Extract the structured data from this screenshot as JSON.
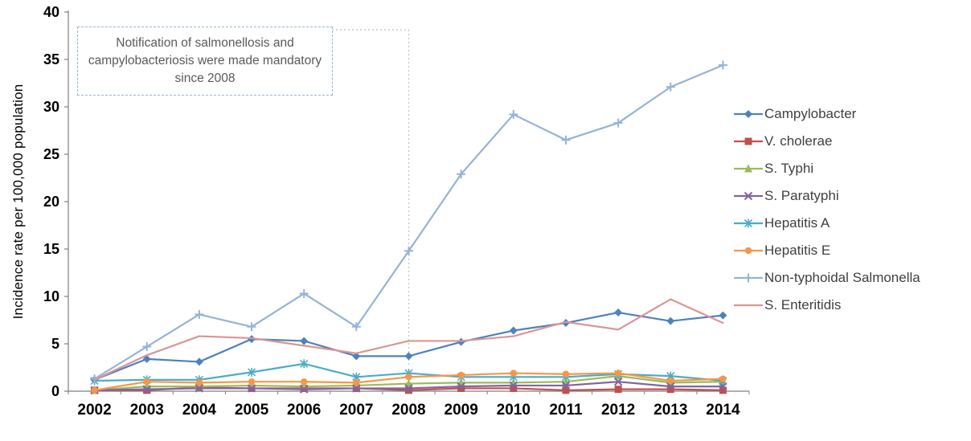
{
  "chart_data": {
    "type": "line",
    "x": [
      "2002",
      "2003",
      "2004",
      "2005",
      "2006",
      "2007",
      "2008",
      "2009",
      "2010",
      "2011",
      "2012",
      "2013",
      "2014"
    ],
    "ylabel": "Incidence rate per 100,000 population",
    "ylim": [
      0,
      40
    ],
    "ytick_step": 5,
    "yticks": [
      0,
      5,
      10,
      15,
      20,
      25,
      30,
      35,
      40
    ],
    "grid": false,
    "legend_position": "right",
    "annotation": {
      "text": "Notification of salmonellosis and campylobacteriosis were made mandatory since 2008",
      "at_x": "2008"
    },
    "series": [
      {
        "name": "Campylobacter",
        "color": "#4F81BD",
        "marker": "diamond",
        "values": [
          1.2,
          3.4,
          3.1,
          5.5,
          5.3,
          3.7,
          3.7,
          5.2,
          6.4,
          7.2,
          8.3,
          7.4,
          8.0
        ]
      },
      {
        "name": "V. cholerae",
        "color": "#C0504D",
        "marker": "square",
        "values": [
          0.1,
          0.1,
          0.4,
          0.3,
          0.3,
          0.3,
          0.1,
          0.3,
          0.3,
          0.1,
          0.2,
          0.2,
          0.1
        ]
      },
      {
        "name": "S. Typhi",
        "color": "#9BBB59",
        "marker": "triangle",
        "values": [
          0.1,
          0.5,
          0.5,
          0.6,
          0.5,
          0.6,
          0.8,
          0.9,
          0.9,
          1.0,
          1.6,
          0.9,
          1.0
        ]
      },
      {
        "name": "S. Paratyphi",
        "color": "#8064A2",
        "marker": "x",
        "values": [
          0.1,
          0.2,
          0.3,
          0.3,
          0.2,
          0.3,
          0.3,
          0.5,
          0.6,
          0.6,
          1.0,
          0.5,
          0.5
        ]
      },
      {
        "name": "Hepatitis A",
        "color": "#4BACC6",
        "marker": "asterisk",
        "values": [
          1.1,
          1.2,
          1.2,
          2.0,
          2.9,
          1.5,
          1.9,
          1.5,
          1.5,
          1.5,
          1.8,
          1.6,
          1.1
        ]
      },
      {
        "name": "Hepatitis E",
        "color": "#F79646",
        "marker": "circle",
        "values": [
          0.1,
          1.0,
          0.9,
          1.0,
          1.0,
          0.9,
          1.5,
          1.7,
          1.9,
          1.8,
          1.9,
          1.1,
          1.3
        ]
      },
      {
        "name": "Non-typhoidal Salmonella",
        "color": "#95B3D7",
        "marker": "plus",
        "values": [
          1.3,
          4.7,
          8.1,
          6.8,
          10.3,
          6.8,
          14.8,
          22.9,
          29.2,
          26.5,
          28.3,
          32.1,
          34.4
        ]
      },
      {
        "name": "S. Enteritidis",
        "color": "#D99694",
        "marker": "none",
        "values": [
          1.2,
          3.8,
          5.8,
          5.6,
          4.8,
          4.0,
          5.3,
          5.3,
          5.8,
          7.3,
          6.5,
          9.7,
          7.2
        ]
      }
    ]
  }
}
